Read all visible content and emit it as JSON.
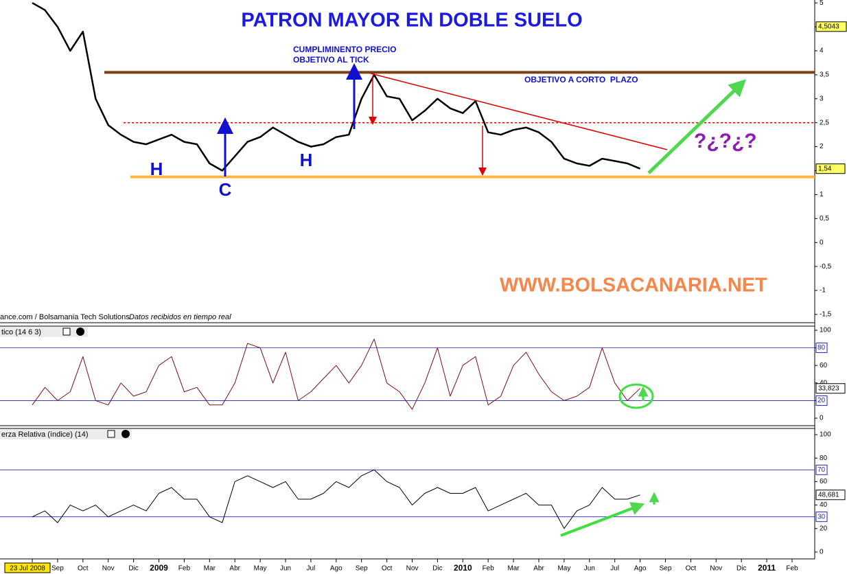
{
  "chart_data": [
    {
      "type": "line",
      "title": "PATRON MAYOR EN DOBLE SUELO",
      "annotations": [
        "CUMPLIMINENTO PRECIO",
        "OBJETIVO AL TICK",
        "OBJETIVO A CORTO  PLAZO",
        "H",
        "C",
        "H",
        "?¿?¿?",
        "WWW.BOLSACANARIA.NET"
      ],
      "source": "ance.com / Bolsamania Tech Solutions",
      "source_note": "Datos recibidos en tiempo real",
      "series": [
        {
          "color": "#000000",
          "values": [
            5.0,
            4.85,
            4.5,
            4.0,
            4.4,
            3.0,
            2.45,
            2.25,
            2.1,
            2.05,
            2.15,
            2.25,
            2.1,
            2.05,
            1.65,
            1.5,
            1.8,
            2.1,
            2.2,
            2.4,
            2.25,
            2.1,
            2.0,
            2.05,
            2.2,
            2.25,
            3.0,
            3.5,
            3.05,
            3.0,
            2.55,
            2.75,
            3.0,
            2.8,
            2.7,
            2.95,
            2.3,
            2.25,
            2.35,
            2.4,
            2.3,
            2.1,
            1.75,
            1.65,
            1.6,
            1.75,
            1.7,
            1.65,
            1.54,
            null,
            null,
            null,
            null,
            null,
            null,
            null,
            null,
            null,
            null,
            null,
            null
          ],
          "value_labels": [
            null,
            null,
            null,
            null,
            null,
            null,
            null,
            null,
            null,
            null,
            null,
            null,
            null,
            null,
            null,
            null,
            null,
            null,
            null,
            null,
            null,
            null,
            null,
            null,
            null,
            null,
            null,
            null,
            null,
            null,
            null,
            null,
            null,
            null,
            null,
            null,
            null,
            null,
            null,
            null,
            null,
            null,
            null,
            null,
            null,
            null,
            null,
            null,
            "1,54",
            null,
            null,
            null,
            null,
            null,
            null,
            null,
            null,
            null,
            null,
            null,
            null
          ]
        }
      ],
      "ylim": [
        -1.63,
        5.06
      ],
      "yticks": [
        5,
        {
          "value": 4.5,
          "label": "4,5"
        },
        4,
        {
          "value": 3.5,
          "label": "3,5"
        },
        3,
        {
          "value": 2.5,
          "label": "2,5"
        },
        2,
        {
          "value": 1.5,
          "label": "1,5"
        },
        1,
        {
          "value": 0.5,
          "label": "0,5"
        },
        0,
        {
          "value": -0.5,
          "label": "-0,5"
        },
        -1,
        {
          "value": -1.5,
          "label": "-1,5"
        }
      ],
      "reference_lines": [
        {
          "value": 3.55,
          "color": "#7b3f12"
        },
        {
          "value": 2.5,
          "color": "#e00000"
        },
        {
          "value": 1.37,
          "color": "#ffb640"
        }
      ],
      "price_marker": {
        "value": 4.5043,
        "label": "4,5043"
      }
    },
    {
      "type": "line",
      "title": "tico (14 6 3)",
      "series": [
        {
          "color": "#7a1010",
          "values": [
            15,
            35,
            20,
            30,
            70,
            20,
            15,
            40,
            25,
            30,
            60,
            70,
            30,
            35,
            15,
            15,
            40,
            85,
            80,
            40,
            75,
            20,
            30,
            45,
            60,
            40,
            60,
            90,
            40,
            30,
            10,
            40,
            80,
            25,
            60,
            70,
            15,
            25,
            60,
            75,
            50,
            30,
            20,
            25,
            35,
            80,
            40,
            20,
            33.823,
            null,
            null,
            null,
            null,
            null,
            null,
            null,
            null,
            null,
            null,
            null,
            null
          ],
          "value_labels": [
            null,
            null,
            null,
            null,
            null,
            null,
            null,
            null,
            null,
            null,
            null,
            null,
            null,
            null,
            null,
            null,
            null,
            null,
            null,
            null,
            null,
            null,
            null,
            null,
            null,
            null,
            null,
            null,
            null,
            null,
            null,
            null,
            null,
            null,
            null,
            null,
            null,
            null,
            null,
            null,
            null,
            null,
            null,
            null,
            null,
            null,
            null,
            null,
            "33,823",
            null,
            null,
            null,
            null,
            null,
            null,
            null,
            null,
            null,
            null,
            null,
            null
          ]
        }
      ],
      "ylim": [
        -7,
        103.9
      ],
      "yticks": [
        0,
        20,
        40,
        60,
        80,
        100
      ],
      "levels": [
        80,
        20
      ]
    },
    {
      "type": "line",
      "title": "erza Relativa (índice) (14)",
      "series": [
        {
          "color": "#000000",
          "values": [
            30,
            35,
            25,
            40,
            35,
            40,
            30,
            35,
            40,
            35,
            50,
            55,
            45,
            45,
            30,
            25,
            60,
            65,
            60,
            55,
            60,
            45,
            45,
            50,
            60,
            55,
            65,
            70,
            60,
            55,
            40,
            50,
            55,
            50,
            50,
            55,
            35,
            40,
            45,
            50,
            40,
            40,
            20,
            35,
            40,
            55,
            45,
            45,
            48.681,
            null,
            null,
            null,
            null,
            null,
            null,
            null,
            null,
            null,
            null,
            null,
            null
          ],
          "value_labels": [
            null,
            null,
            null,
            null,
            null,
            null,
            null,
            null,
            null,
            null,
            null,
            null,
            null,
            null,
            null,
            null,
            null,
            null,
            null,
            null,
            null,
            null,
            null,
            null,
            null,
            null,
            null,
            null,
            null,
            null,
            null,
            null,
            null,
            null,
            null,
            null,
            null,
            null,
            null,
            null,
            null,
            null,
            null,
            null,
            null,
            null,
            null,
            null,
            "48,681",
            null,
            null,
            null,
            null,
            null,
            null,
            null,
            null,
            null,
            null,
            null,
            null
          ]
        }
      ],
      "ylim": [
        -4.7,
        104.7
      ],
      "yticks": [
        0,
        20,
        40,
        60,
        80,
        100
      ],
      "levels": [
        70,
        30
      ],
      "categories": [
        "23 Jul 2008",
        null,
        "Sep",
        null,
        "Oct",
        null,
        "Nov",
        null,
        "Dic",
        null,
        "2009",
        null,
        "Feb",
        null,
        "Mar",
        null,
        "Abr",
        null,
        "May",
        null,
        "Jun",
        null,
        "Jul",
        null,
        "Ago",
        null,
        "Sep",
        null,
        "Oct",
        null,
        "Nov",
        null,
        "Dic",
        null,
        "2010",
        null,
        "Feb",
        null,
        "Mar",
        null,
        "Abr",
        null,
        "May",
        null,
        "Jun",
        null,
        "Jul",
        null,
        "Ago",
        null,
        "Sep",
        null,
        "Oct",
        null,
        "Nov",
        null,
        "Dic",
        null,
        "2011",
        null,
        "Feb"
      ]
    }
  ]
}
